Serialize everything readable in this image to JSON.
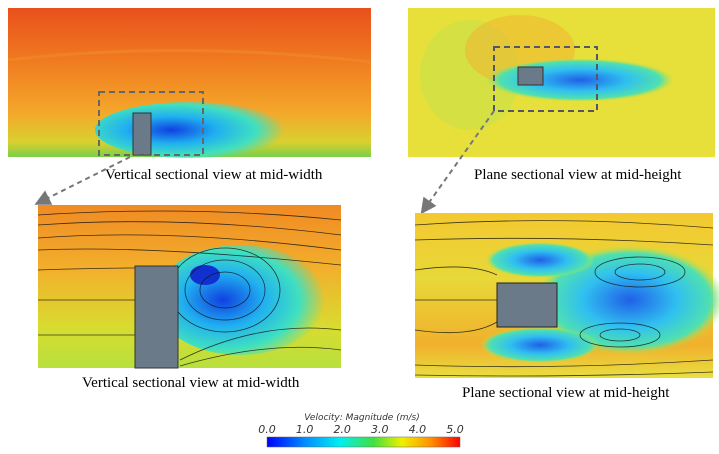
{
  "panels": [
    {
      "caption": "Vertical sectional view at mid-width"
    },
    {
      "caption": "Plane sectional view at mid-height"
    },
    {
      "caption": "Vertical sectional view at mid-width"
    },
    {
      "caption": "Plane sectional view at mid-height"
    }
  ],
  "colorbar": {
    "title": "Velocity: Magnitude (m/s)",
    "tick_labels": [
      "0.0",
      "1.0",
      "2.0",
      "3.0",
      "4.0",
      "5.0"
    ]
  }
}
